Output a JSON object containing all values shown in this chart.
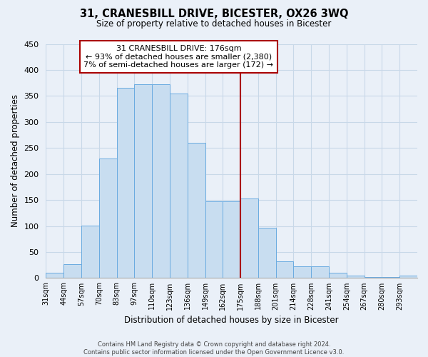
{
  "title": "31, CRANESBILL DRIVE, BICESTER, OX26 3WQ",
  "subtitle": "Size of property relative to detached houses in Bicester",
  "xlabel": "Distribution of detached houses by size in Bicester",
  "ylabel": "Number of detached properties",
  "bin_labels": [
    "31sqm",
    "44sqm",
    "57sqm",
    "70sqm",
    "83sqm",
    "97sqm",
    "110sqm",
    "123sqm",
    "136sqm",
    "149sqm",
    "162sqm",
    "175sqm",
    "188sqm",
    "201sqm",
    "214sqm",
    "228sqm",
    "241sqm",
    "254sqm",
    "267sqm",
    "280sqm",
    "293sqm"
  ],
  "bar_heights": [
    10,
    27,
    101,
    230,
    365,
    372,
    372,
    355,
    260,
    147,
    147,
    153,
    96,
    32,
    22,
    22,
    10,
    5,
    2,
    2,
    5
  ],
  "bar_color": "#c8ddf0",
  "bar_edge_color": "#6aabe0",
  "grid_color": "#c8d8e8",
  "background_color": "#eaf0f8",
  "vline_color": "#aa0000",
  "vline_x_label": "175sqm",
  "annotation_title": "31 CRANESBILL DRIVE: 176sqm",
  "annotation_line1": "← 93% of detached houses are smaller (2,380)",
  "annotation_line2": "7% of semi-detached houses are larger (172) →",
  "annotation_box_color": "#ffffff",
  "annotation_box_edge": "#aa0000",
  "ylim": [
    0,
    450
  ],
  "yticks": [
    0,
    50,
    100,
    150,
    200,
    250,
    300,
    350,
    400,
    450
  ],
  "footer_line1": "Contains HM Land Registry data © Crown copyright and database right 2024.",
  "footer_line2": "Contains public sector information licensed under the Open Government Licence v3.0."
}
